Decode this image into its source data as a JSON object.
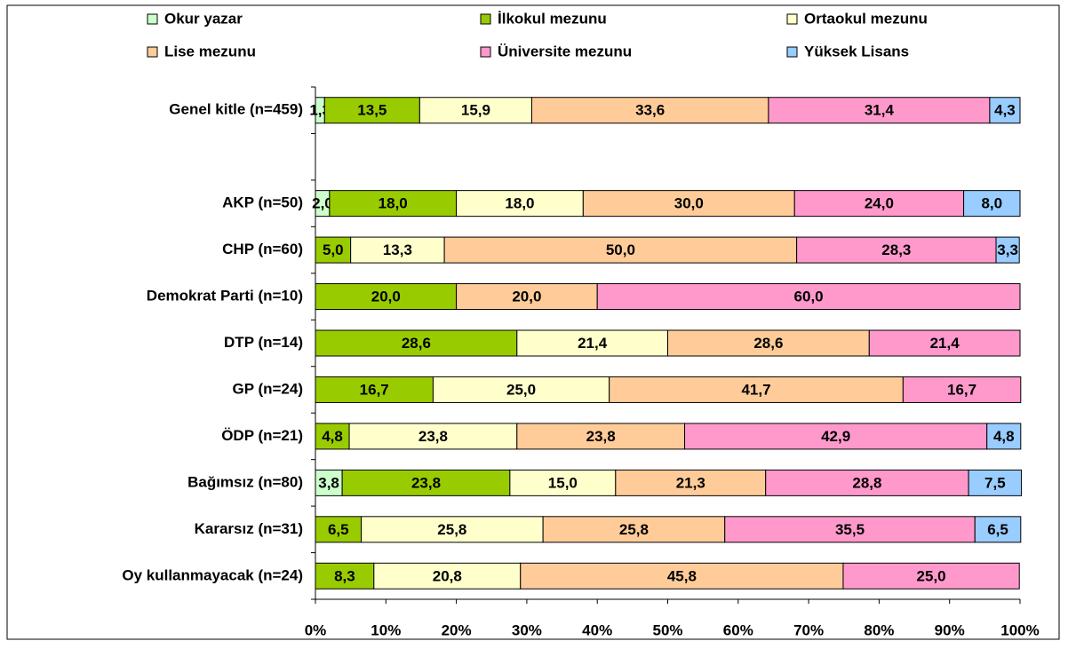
{
  "chart_data": {
    "type": "stacked-bar-horizontal",
    "categories": [
      "Genel kitle (n=459)",
      null,
      "AKP (n=50)",
      "CHP (n=60)",
      "Demokrat Parti (n=10)",
      "DTP (n=14)",
      "GP (n=24)",
      "ÖDP (n=21)",
      "Bağımsız (n=80)",
      "Kararsız (n=31)",
      "Oy kullanmayacak (n=24)"
    ],
    "series": [
      {
        "name": "Okur yazar",
        "color": "#ccffcc",
        "values": [
          1.3,
          null,
          2.0,
          null,
          null,
          null,
          null,
          null,
          3.8,
          null,
          null
        ],
        "value_labels": [
          "1,3",
          null,
          "2,0",
          null,
          null,
          null,
          null,
          null,
          "3,8",
          null,
          null
        ]
      },
      {
        "name": "İlkokul mezunu",
        "color": "#99cc00",
        "values": [
          13.5,
          null,
          18.0,
          5.0,
          20.0,
          28.6,
          16.7,
          4.8,
          23.8,
          6.5,
          8.3
        ],
        "value_labels": [
          "13,5",
          null,
          "18,0",
          "5,0",
          "20,0",
          "28,6",
          "16,7",
          "4,8",
          "23,8",
          "6,5",
          "8,3"
        ]
      },
      {
        "name": "Ortaokul mezunu",
        "color": "#ffffcc",
        "values": [
          15.9,
          null,
          18.0,
          13.3,
          null,
          21.4,
          25.0,
          23.8,
          15.0,
          25.8,
          20.8
        ],
        "value_labels": [
          "15,9",
          null,
          "18,0",
          "13,3",
          null,
          "21,4",
          "25,0",
          "23,8",
          "15,0",
          "25,8",
          "20,8"
        ]
      },
      {
        "name": "Lise mezunu",
        "color": "#ffcc99",
        "values": [
          33.6,
          null,
          30.0,
          50.0,
          20.0,
          28.6,
          41.7,
          23.8,
          21.3,
          25.8,
          45.8
        ],
        "value_labels": [
          "33,6",
          null,
          "30,0",
          "50,0",
          "20,0",
          "28,6",
          "41,7",
          "23,8",
          "21,3",
          "25,8",
          "45,8"
        ]
      },
      {
        "name": "Üniversite mezunu",
        "color": "#ff99cc",
        "values": [
          31.4,
          null,
          24.0,
          28.3,
          60.0,
          21.4,
          16.7,
          42.9,
          28.8,
          35.5,
          25.0
        ],
        "value_labels": [
          "31,4",
          null,
          "24,0",
          "28,3",
          "60,0",
          "21,4",
          "16,7",
          "42,9",
          "28,8",
          "35,5",
          "25,0"
        ]
      },
      {
        "name": "Yüksek Lisans",
        "color": "#99ccff",
        "values": [
          4.3,
          null,
          8.0,
          3.3,
          null,
          null,
          null,
          4.8,
          7.5,
          6.5,
          null
        ],
        "value_labels": [
          "4,3",
          null,
          "8,0",
          "3,3",
          null,
          null,
          null,
          "4,8",
          "7,5",
          "6,5",
          null
        ]
      }
    ],
    "xlim": [
      0,
      100
    ],
    "xticks": [
      {
        "value": 0,
        "label": "0%"
      },
      {
        "value": 10,
        "label": "10%"
      },
      {
        "value": 20,
        "label": "20%"
      },
      {
        "value": 30,
        "label": "30%"
      },
      {
        "value": 40,
        "label": "40%"
      },
      {
        "value": 50,
        "label": "50%"
      },
      {
        "value": 60,
        "label": "60%"
      },
      {
        "value": 70,
        "label": "70%"
      },
      {
        "value": 80,
        "label": "80%"
      },
      {
        "value": 90,
        "label": "90%"
      },
      {
        "value": 100,
        "label": "100%"
      }
    ],
    "grid": false
  }
}
